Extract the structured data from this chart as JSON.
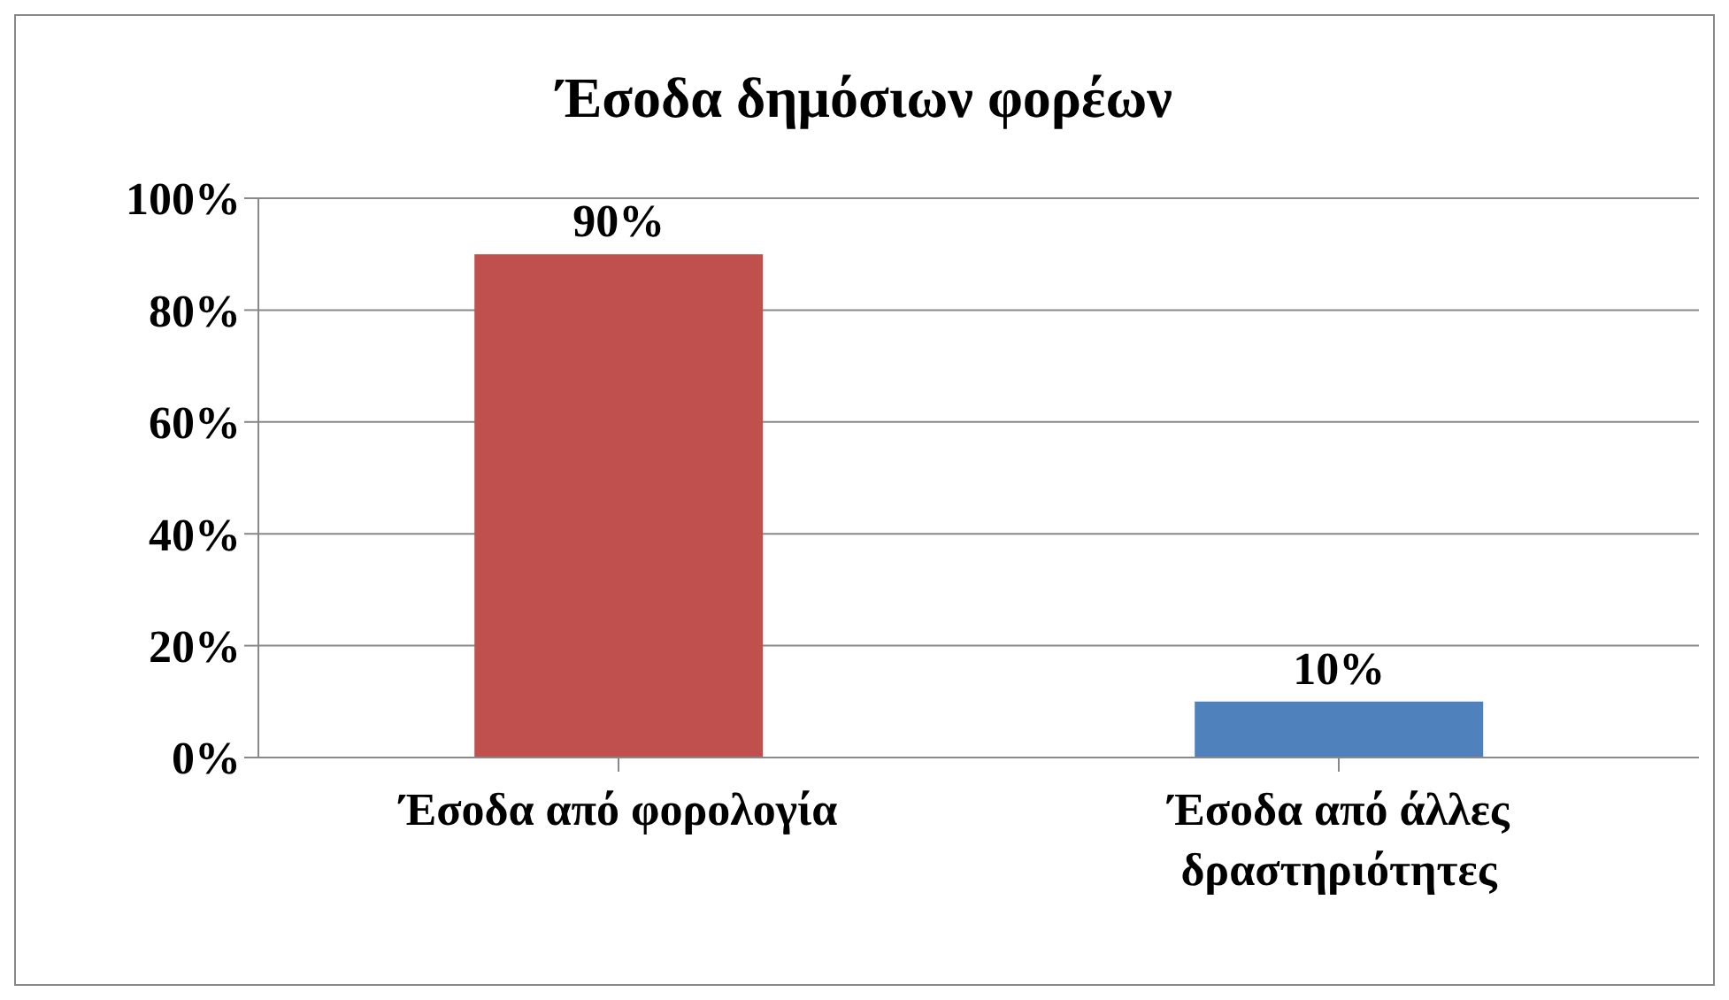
{
  "chart_data": {
    "type": "bar",
    "title": "Έσοδα δημόσιων φορέων",
    "categories": [
      "Έσοδα από φορολογία",
      "Έσοδα από άλλες δραστηριότητες"
    ],
    "values": [
      90,
      10
    ],
    "colors": [
      "#c0504d",
      "#4f81bd"
    ],
    "value_labels": [
      "90%",
      "10%"
    ],
    "ylim": [
      0,
      100
    ],
    "yticks": [
      {
        "value": 0,
        "label": "0%"
      },
      {
        "value": 20,
        "label": "20%"
      },
      {
        "value": 40,
        "label": "40%"
      },
      {
        "value": 60,
        "label": "60%"
      },
      {
        "value": 80,
        "label": "80%"
      },
      {
        "value": 100,
        "label": "100%"
      }
    ],
    "grid": "y",
    "legend": false
  }
}
